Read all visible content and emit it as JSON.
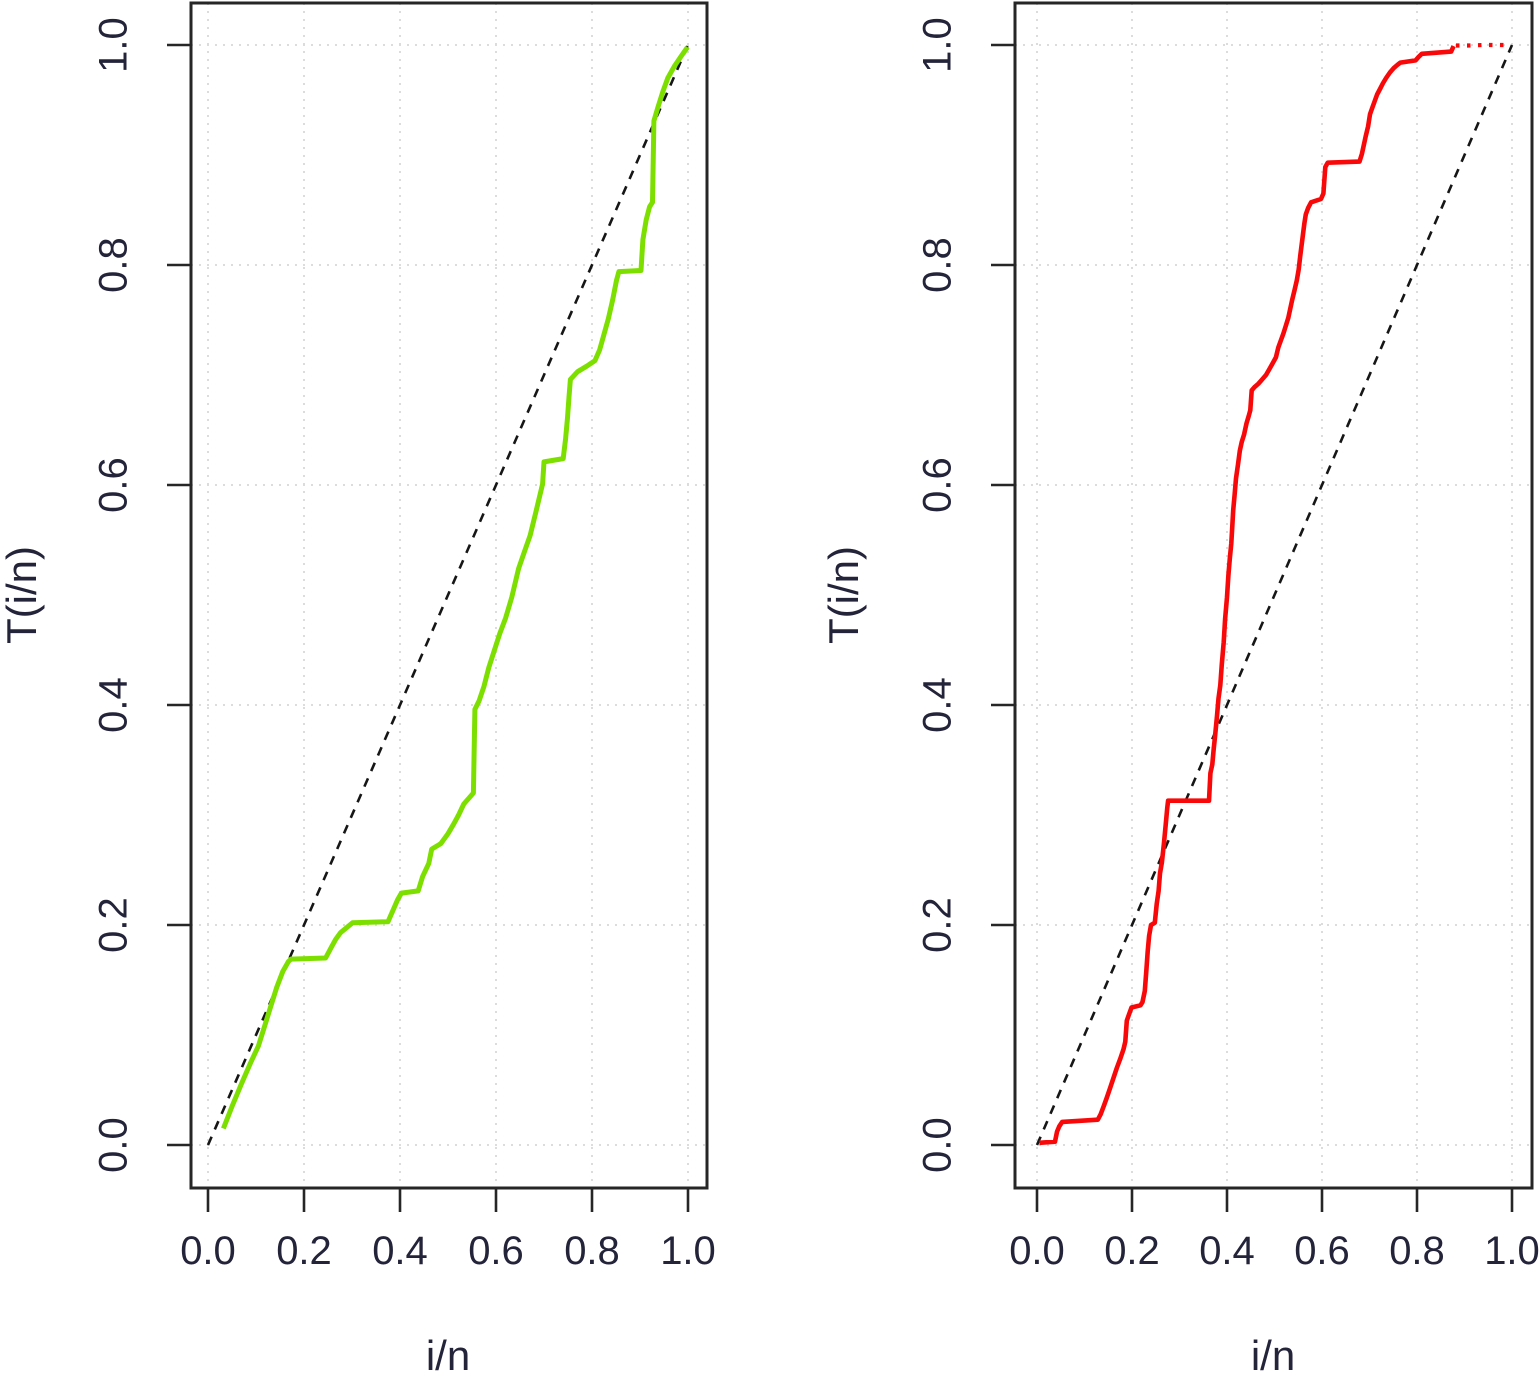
{
  "page": {
    "background": "#ffffff"
  },
  "colors": {
    "text": "#23233a",
    "grid": "#dcdcdc",
    "frame": "#262626",
    "diagonal": "#161616",
    "green": "#7cdf00",
    "red": "#f80808"
  },
  "chart_data": [
    {
      "type": "line",
      "panel": "left",
      "title": "",
      "xlabel": "i/n",
      "ylabel": "T(i/n)",
      "xlim": [
        0,
        1
      ],
      "ylim": [
        0,
        1
      ],
      "grid": true,
      "legend": "none",
      "x_ticks": [
        0,
        0.2,
        0.4,
        0.6,
        0.8,
        1
      ],
      "y_ticks": [
        0,
        0.2,
        0.4,
        0.6,
        0.8,
        1
      ],
      "x_tick_labels": [
        "0.0",
        "0.2",
        "0.4",
        "0.6",
        "0.8",
        "1.0"
      ],
      "y_tick_labels": [
        "0.0",
        "0.2",
        "0.4",
        "0.6",
        "0.8",
        "1.0"
      ],
      "series": [
        {
          "name": "reference-diagonal",
          "color": "#161616",
          "width": 2.6,
          "style": "dashed",
          "points": [
            [
              0,
              0
            ],
            [
              1,
              1
            ]
          ]
        },
        {
          "name": "ttt-curve-green",
          "color": "#7cdf00",
          "width": 5,
          "style": "solid",
          "points": [
            [
              0.032,
              0.015
            ],
            [
              0.05,
              0.035
            ],
            [
              0.07,
              0.056
            ],
            [
              0.09,
              0.076
            ],
            [
              0.105,
              0.09
            ],
            [
              0.118,
              0.108
            ],
            [
              0.13,
              0.125
            ],
            [
              0.143,
              0.143
            ],
            [
              0.156,
              0.158
            ],
            [
              0.168,
              0.167
            ],
            [
              0.173,
              0.169
            ],
            [
              0.245,
              0.17
            ],
            [
              0.256,
              0.179
            ],
            [
              0.266,
              0.187
            ],
            [
              0.276,
              0.193
            ],
            [
              0.287,
              0.197
            ],
            [
              0.301,
              0.202
            ],
            [
              0.375,
              0.203
            ],
            [
              0.385,
              0.213
            ],
            [
              0.395,
              0.223
            ],
            [
              0.403,
              0.229
            ],
            [
              0.438,
              0.231
            ],
            [
              0.447,
              0.244
            ],
            [
              0.46,
              0.256
            ],
            [
              0.466,
              0.269
            ],
            [
              0.485,
              0.274
            ],
            [
              0.5,
              0.283
            ],
            [
              0.512,
              0.292
            ],
            [
              0.522,
              0.3
            ],
            [
              0.533,
              0.31
            ],
            [
              0.545,
              0.316
            ],
            [
              0.553,
              0.32
            ],
            [
              0.556,
              0.396
            ],
            [
              0.565,
              0.404
            ],
            [
              0.575,
              0.417
            ],
            [
              0.585,
              0.434
            ],
            [
              0.596,
              0.449
            ],
            [
              0.608,
              0.465
            ],
            [
              0.62,
              0.479
            ],
            [
              0.633,
              0.498
            ],
            [
              0.647,
              0.524
            ],
            [
              0.659,
              0.539
            ],
            [
              0.671,
              0.554
            ],
            [
              0.684,
              0.577
            ],
            [
              0.697,
              0.601
            ],
            [
              0.7,
              0.621
            ],
            [
              0.74,
              0.624
            ],
            [
              0.745,
              0.642
            ],
            [
              0.749,
              0.661
            ],
            [
              0.752,
              0.68
            ],
            [
              0.755,
              0.696
            ],
            [
              0.77,
              0.703
            ],
            [
              0.789,
              0.708
            ],
            [
              0.806,
              0.713
            ],
            [
              0.816,
              0.723
            ],
            [
              0.825,
              0.737
            ],
            [
              0.834,
              0.751
            ],
            [
              0.843,
              0.768
            ],
            [
              0.851,
              0.786
            ],
            [
              0.856,
              0.794
            ],
            [
              0.902,
              0.795
            ],
            [
              0.906,
              0.823
            ],
            [
              0.913,
              0.841
            ],
            [
              0.92,
              0.853
            ],
            [
              0.926,
              0.857
            ],
            [
              0.929,
              0.931
            ],
            [
              0.937,
              0.943
            ],
            [
              0.948,
              0.958
            ],
            [
              0.958,
              0.97
            ],
            [
              0.972,
              0.981
            ],
            [
              0.986,
              0.99
            ],
            [
              0.999,
              0.998
            ]
          ]
        }
      ]
    },
    {
      "type": "line",
      "panel": "right",
      "title": "",
      "xlabel": "i/n",
      "ylabel": "T(i/n)",
      "xlim": [
        0,
        1
      ],
      "ylim": [
        0,
        1
      ],
      "grid": true,
      "legend": "none",
      "x_ticks": [
        0,
        0.2,
        0.4,
        0.6,
        0.8,
        1
      ],
      "y_ticks": [
        0,
        0.2,
        0.4,
        0.6,
        0.8,
        1
      ],
      "x_tick_labels": [
        "0.0",
        "0.2",
        "0.4",
        "0.6",
        "0.8",
        "1.0"
      ],
      "y_tick_labels": [
        "0.0",
        "0.2",
        "0.4",
        "0.6",
        "0.8",
        "1.0"
      ],
      "series": [
        {
          "name": "reference-diagonal",
          "color": "#161616",
          "width": 2.6,
          "style": "dashed",
          "points": [
            [
              0,
              0
            ],
            [
              1,
              1
            ]
          ]
        },
        {
          "name": "ttt-curve-red",
          "color": "#f80808",
          "width": 4.6,
          "style": "solid",
          "points": [
            [
              0.005,
              0.002
            ],
            [
              0.038,
              0.003
            ],
            [
              0.042,
              0.012
            ],
            [
              0.047,
              0.017
            ],
            [
              0.053,
              0.021
            ],
            [
              0.128,
              0.023
            ],
            [
              0.134,
              0.028
            ],
            [
              0.141,
              0.036
            ],
            [
              0.147,
              0.043
            ],
            [
              0.154,
              0.052
            ],
            [
              0.161,
              0.061
            ],
            [
              0.168,
              0.07
            ],
            [
              0.175,
              0.078
            ],
            [
              0.182,
              0.087
            ],
            [
              0.186,
              0.094
            ],
            [
              0.189,
              0.113
            ],
            [
              0.193,
              0.118
            ],
            [
              0.199,
              0.125
            ],
            [
              0.218,
              0.127
            ],
            [
              0.222,
              0.13
            ],
            [
              0.227,
              0.14
            ],
            [
              0.23,
              0.158
            ],
            [
              0.233,
              0.176
            ],
            [
              0.236,
              0.19
            ],
            [
              0.24,
              0.2
            ],
            [
              0.248,
              0.202
            ],
            [
              0.252,
              0.219
            ],
            [
              0.256,
              0.231
            ],
            [
              0.259,
              0.247
            ],
            [
              0.263,
              0.257
            ],
            [
              0.267,
              0.273
            ],
            [
              0.271,
              0.291
            ],
            [
              0.274,
              0.306
            ],
            [
              0.276,
              0.313
            ],
            [
              0.362,
              0.313
            ],
            [
              0.365,
              0.338
            ],
            [
              0.369,
              0.346
            ],
            [
              0.372,
              0.36
            ],
            [
              0.375,
              0.372
            ],
            [
              0.379,
              0.39
            ],
            [
              0.382,
              0.406
            ],
            [
              0.386,
              0.418
            ],
            [
              0.389,
              0.437
            ],
            [
              0.393,
              0.457
            ],
            [
              0.396,
              0.478
            ],
            [
              0.4,
              0.498
            ],
            [
              0.403,
              0.518
            ],
            [
              0.406,
              0.533
            ],
            [
              0.409,
              0.547
            ],
            [
              0.411,
              0.561
            ],
            [
              0.413,
              0.577
            ],
            [
              0.416,
              0.591
            ],
            [
              0.419,
              0.606
            ],
            [
              0.423,
              0.618
            ],
            [
              0.427,
              0.631
            ],
            [
              0.431,
              0.639
            ],
            [
              0.436,
              0.646
            ],
            [
              0.441,
              0.656
            ],
            [
              0.446,
              0.663
            ],
            [
              0.449,
              0.668
            ],
            [
              0.452,
              0.686
            ],
            [
              0.458,
              0.689
            ],
            [
              0.466,
              0.692
            ],
            [
              0.474,
              0.696
            ],
            [
              0.482,
              0.7
            ],
            [
              0.49,
              0.706
            ],
            [
              0.498,
              0.712
            ],
            [
              0.503,
              0.716
            ],
            [
              0.508,
              0.725
            ],
            [
              0.513,
              0.731
            ],
            [
              0.519,
              0.738
            ],
            [
              0.524,
              0.745
            ],
            [
              0.529,
              0.752
            ],
            [
              0.533,
              0.76
            ],
            [
              0.537,
              0.768
            ],
            [
              0.542,
              0.777
            ],
            [
              0.547,
              0.786
            ],
            [
              0.551,
              0.796
            ],
            [
              0.554,
              0.808
            ],
            [
              0.557,
              0.818
            ],
            [
              0.56,
              0.828
            ],
            [
              0.563,
              0.838
            ],
            [
              0.566,
              0.846
            ],
            [
              0.571,
              0.852
            ],
            [
              0.577,
              0.857
            ],
            [
              0.598,
              0.86
            ],
            [
              0.603,
              0.865
            ],
            [
              0.607,
              0.889
            ],
            [
              0.612,
              0.893
            ],
            [
              0.679,
              0.894
            ],
            [
              0.684,
              0.901
            ],
            [
              0.688,
              0.909
            ],
            [
              0.692,
              0.917
            ],
            [
              0.697,
              0.926
            ],
            [
              0.701,
              0.937
            ],
            [
              0.706,
              0.943
            ],
            [
              0.711,
              0.949
            ],
            [
              0.716,
              0.955
            ],
            [
              0.722,
              0.96
            ],
            [
              0.728,
              0.965
            ],
            [
              0.735,
              0.97
            ],
            [
              0.743,
              0.975
            ],
            [
              0.751,
              0.979
            ],
            [
              0.759,
              0.982
            ],
            [
              0.765,
              0.984
            ],
            [
              0.797,
              0.986
            ],
            [
              0.803,
              0.989
            ],
            [
              0.81,
              0.992
            ],
            [
              0.872,
              0.994
            ],
            [
              0.877,
              0.999
            ]
          ]
        },
        {
          "name": "ttt-curve-red-dotted-tail",
          "color": "#f80808",
          "width": 4.2,
          "style": "dotted",
          "points": [
            [
              0.882,
              0.9995
            ],
            [
              0.91,
              0.9995
            ],
            [
              0.94,
              1.0
            ],
            [
              0.998,
              1.0
            ]
          ]
        }
      ]
    }
  ]
}
